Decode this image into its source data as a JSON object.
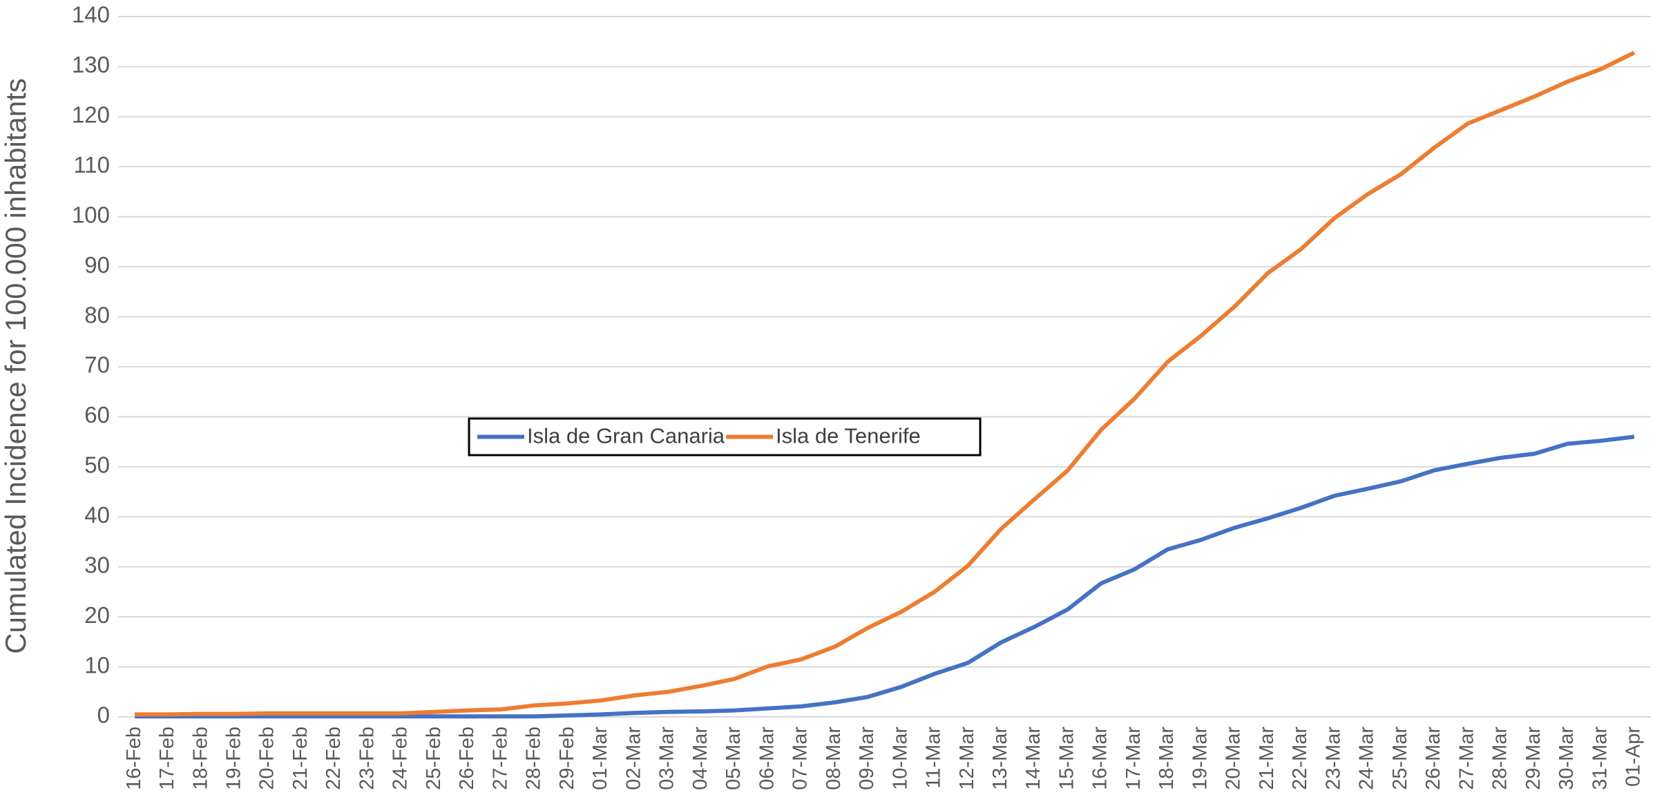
{
  "chart_data": {
    "type": "line",
    "y_label": "Cumulated Incidence for 100.000 inhabitants",
    "categories": [
      "16-Feb",
      "17-Feb",
      "18-Feb",
      "19-Feb",
      "20-Feb",
      "21-Feb",
      "22-Feb",
      "23-Feb",
      "24-Feb",
      "25-Feb",
      "26-Feb",
      "27-Feb",
      "28-Feb",
      "29-Feb",
      "01-Mar",
      "02-Mar",
      "03-Mar",
      "04-Mar",
      "05-Mar",
      "06-Mar",
      "07-Mar",
      "08-Mar",
      "09-Mar",
      "10-Mar",
      "11-Mar",
      "12-Mar",
      "13-Mar",
      "14-Mar",
      "15-Mar",
      "16-Mar",
      "17-Mar",
      "18-Mar",
      "19-Mar",
      "20-Mar",
      "21-Mar",
      "22-Mar",
      "23-Mar",
      "24-Mar",
      "25-Mar",
      "26-Mar",
      "27-Mar",
      "28-Mar",
      "29-Mar",
      "30-Mar",
      "31-Mar",
      "01-Apr"
    ],
    "series": [
      {
        "name": "Isla de Gran Canaria",
        "color": "#4472c4",
        "values": [
          0.1,
          0.1,
          0.1,
          0.1,
          0.1,
          0.1,
          0.1,
          0.1,
          0.1,
          0.1,
          0.1,
          0.1,
          0.1,
          0.3,
          0.5,
          0.8,
          1.0,
          1.1,
          1.3,
          1.7,
          2.1,
          2.9,
          4.0,
          6.0,
          8.6,
          10.8,
          14.9,
          18.0,
          21.5,
          26.7,
          29.5,
          33.5,
          35.4,
          37.8,
          39.7,
          41.8,
          44.2,
          45.6,
          47.1,
          49.3,
          50.6,
          51.8,
          52.6,
          54.6,
          55.2,
          56.0
        ]
      },
      {
        "name": "Isla de Tenerife",
        "color": "#ed7d31",
        "values": [
          0.5,
          0.5,
          0.6,
          0.6,
          0.7,
          0.7,
          0.7,
          0.7,
          0.7,
          1.0,
          1.3,
          1.5,
          2.3,
          2.7,
          3.3,
          4.3,
          5.0,
          6.2,
          7.6,
          10.1,
          11.5,
          14.0,
          17.8,
          21.0,
          25.0,
          30.2,
          37.6,
          43.5,
          49.3,
          57.4,
          63.6,
          71.0,
          76.2,
          82.0,
          88.7,
          93.5,
          99.7,
          104.5,
          108.5,
          113.8,
          118.6,
          121.3,
          124.0,
          127.0,
          129.5,
          132.8
        ]
      }
    ],
    "ylim": [
      0,
      140
    ],
    "yticks": [
      0,
      10,
      20,
      30,
      40,
      50,
      60,
      70,
      80,
      90,
      100,
      110,
      120,
      130,
      140
    ],
    "grid": true,
    "legend": "center"
  }
}
